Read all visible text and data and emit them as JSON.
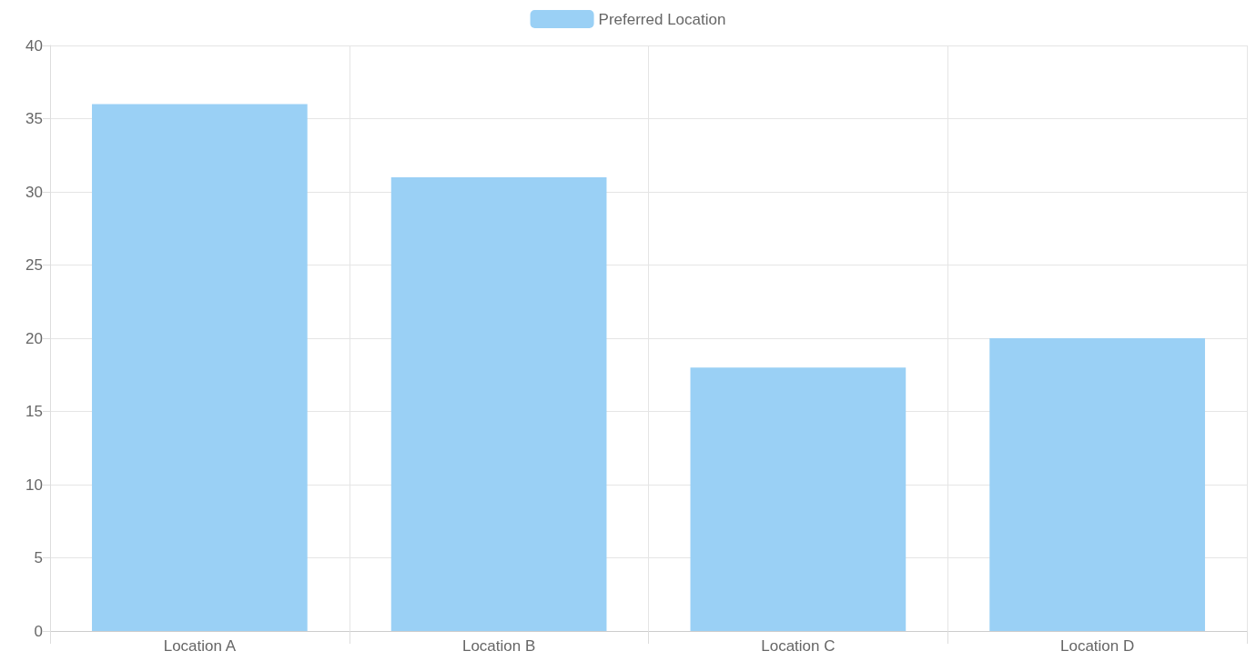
{
  "chart_data": {
    "type": "bar",
    "categories": [
      "Location A",
      "Location B",
      "Location C",
      "Location D"
    ],
    "series": [
      {
        "name": "Preferred Location",
        "color": "#9ad0f5",
        "values": [
          36,
          31,
          18,
          20
        ]
      }
    ],
    "ylim": [
      0,
      40
    ],
    "yticks": [
      0,
      5,
      10,
      15,
      20,
      25,
      30,
      35,
      40
    ],
    "grid": true,
    "legend": "top"
  }
}
